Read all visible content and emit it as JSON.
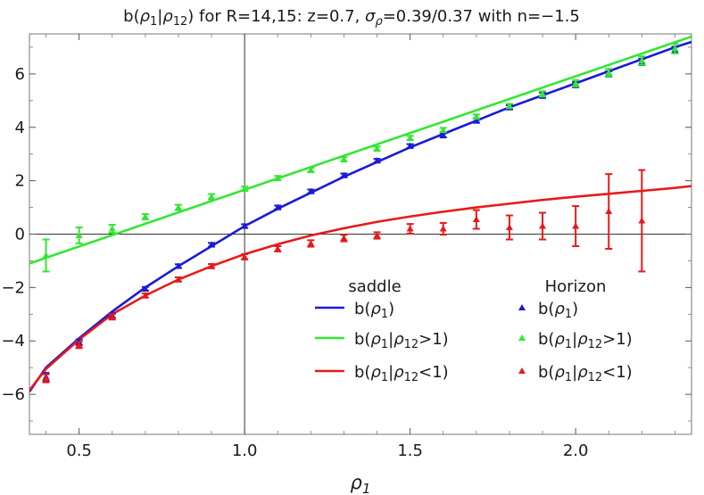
{
  "chart_data": {
    "type": "scatter",
    "title_parts": [
      {
        "t": "b("
      },
      {
        "t": "ρ",
        "it": true
      },
      {
        "t": "1",
        "sub": true
      },
      {
        "t": "|"
      },
      {
        "t": "ρ",
        "it": true
      },
      {
        "t": "12",
        "sub": true
      },
      {
        "t": ") for R=14,15: z=0.7, "
      },
      {
        "t": "σ",
        "it": true
      },
      {
        "t": "ρ",
        "sub": true,
        "it": true
      },
      {
        "t": "=0.39/0.37 with n=−1.5"
      }
    ],
    "xlabel_parts": [
      {
        "t": "ρ",
        "it": true
      },
      {
        "t": "1",
        "sub": true
      }
    ],
    "xlim": [
      0.35,
      2.35
    ],
    "ylim": [
      -7.5,
      7.5
    ],
    "xticks": [
      0.5,
      1.0,
      1.5,
      2.0
    ],
    "xtick_labels": [
      "0.5",
      "1.0",
      "1.5",
      "2.0"
    ],
    "yticks": [
      -6,
      -4,
      -2,
      0,
      2,
      4,
      6
    ],
    "ytick_labels": [
      "−6",
      "−4",
      "−2",
      "0",
      "2",
      "4",
      "6"
    ],
    "axes_origin": {
      "x": 1.0,
      "y": 0
    },
    "grid": false,
    "legend": {
      "placement": "bottom-right",
      "headers": [
        "saddle",
        "Horizon"
      ],
      "rows": [
        [
          {
            "t": "b("
          },
          {
            "t": "ρ",
            "it": true
          },
          {
            "t": "1",
            "sub": true
          },
          {
            "t": ")"
          }
        ],
        [
          {
            "t": "b("
          },
          {
            "t": "ρ",
            "it": true
          },
          {
            "t": "1",
            "sub": true
          },
          {
            "t": "|"
          },
          {
            "t": "ρ",
            "it": true
          },
          {
            "t": "12",
            "sub": true
          },
          {
            "t": ">1)"
          }
        ],
        [
          {
            "t": "b("
          },
          {
            "t": "ρ",
            "it": true
          },
          {
            "t": "1",
            "sub": true
          },
          {
            "t": "|"
          },
          {
            "t": "ρ",
            "it": true
          },
          {
            "t": "12",
            "sub": true
          },
          {
            "t": "<1)"
          }
        ]
      ]
    },
    "series": [
      {
        "color": "#1a1ad6",
        "curve": {
          "x": [
            0.35,
            0.4,
            0.5,
            0.6,
            0.7,
            0.8,
            0.9,
            1.0,
            1.1,
            1.2,
            1.3,
            1.4,
            1.5,
            1.6,
            1.7,
            1.8,
            1.9,
            2.0,
            2.1,
            2.2,
            2.3,
            2.35
          ],
          "y": [
            -5.9,
            -5.0,
            -3.9,
            -2.9,
            -2.0,
            -1.2,
            -0.45,
            0.3,
            0.95,
            1.55,
            2.15,
            2.7,
            3.25,
            3.75,
            4.25,
            4.75,
            5.2,
            5.65,
            6.1,
            6.55,
            7.0,
            7.2
          ]
        },
        "points": [
          {
            "x": 0.4,
            "y": -5.35,
            "err": 0.15
          },
          {
            "x": 0.5,
            "y": -4.05,
            "err": 0.1
          },
          {
            "x": 0.6,
            "y": -3.05,
            "err": 0.08
          },
          {
            "x": 0.7,
            "y": -2.05,
            "err": 0.07
          },
          {
            "x": 0.8,
            "y": -1.2,
            "err": 0.07
          },
          {
            "x": 0.9,
            "y": -0.4,
            "err": 0.07
          },
          {
            "x": 1.0,
            "y": 0.3,
            "err": 0.07
          },
          {
            "x": 1.1,
            "y": 1.0,
            "err": 0.07
          },
          {
            "x": 1.2,
            "y": 1.6,
            "err": 0.07
          },
          {
            "x": 1.3,
            "y": 2.2,
            "err": 0.07
          },
          {
            "x": 1.4,
            "y": 2.75,
            "err": 0.07
          },
          {
            "x": 1.5,
            "y": 3.3,
            "err": 0.07
          },
          {
            "x": 1.6,
            "y": 3.7,
            "err": 0.08
          },
          {
            "x": 1.7,
            "y": 4.25,
            "err": 0.08
          },
          {
            "x": 1.8,
            "y": 4.75,
            "err": 0.08
          },
          {
            "x": 1.9,
            "y": 5.2,
            "err": 0.1
          },
          {
            "x": 2.0,
            "y": 5.6,
            "err": 0.1
          },
          {
            "x": 2.1,
            "y": 6.0,
            "err": 0.1
          },
          {
            "x": 2.2,
            "y": 6.45,
            "err": 0.12
          },
          {
            "x": 2.3,
            "y": 6.9,
            "err": 0.12
          }
        ]
      },
      {
        "color": "#33e633",
        "curve": {
          "x": [
            0.35,
            2.35
          ],
          "y": [
            -1.1,
            7.4
          ]
        },
        "points": [
          {
            "x": 0.4,
            "y": -0.8,
            "err": 0.6
          },
          {
            "x": 0.5,
            "y": -0.05,
            "err": 0.3
          },
          {
            "x": 0.6,
            "y": 0.2,
            "err": 0.15
          },
          {
            "x": 0.7,
            "y": 0.65,
            "err": 0.1
          },
          {
            "x": 0.8,
            "y": 1.0,
            "err": 0.1
          },
          {
            "x": 0.9,
            "y": 1.4,
            "err": 0.1
          },
          {
            "x": 1.0,
            "y": 1.7,
            "err": 0.08
          },
          {
            "x": 1.1,
            "y": 2.1,
            "err": 0.08
          },
          {
            "x": 1.2,
            "y": 2.4,
            "err": 0.08
          },
          {
            "x": 1.3,
            "y": 2.8,
            "err": 0.08
          },
          {
            "x": 1.4,
            "y": 3.2,
            "err": 0.08
          },
          {
            "x": 1.5,
            "y": 3.6,
            "err": 0.08
          },
          {
            "x": 1.6,
            "y": 3.9,
            "err": 0.08
          },
          {
            "x": 1.7,
            "y": 4.4,
            "err": 0.08
          },
          {
            "x": 1.8,
            "y": 4.8,
            "err": 0.08
          },
          {
            "x": 1.9,
            "y": 5.25,
            "err": 0.1
          },
          {
            "x": 2.0,
            "y": 5.65,
            "err": 0.12
          },
          {
            "x": 2.1,
            "y": 6.05,
            "err": 0.14
          },
          {
            "x": 2.2,
            "y": 6.5,
            "err": 0.16
          },
          {
            "x": 2.3,
            "y": 6.95,
            "err": 0.18
          }
        ]
      },
      {
        "color": "#e61a1a",
        "curve": {
          "x": [
            0.35,
            0.4,
            0.5,
            0.6,
            0.7,
            0.8,
            0.9,
            1.0,
            1.1,
            1.2,
            1.3,
            1.4,
            1.5,
            1.6,
            1.7,
            1.8,
            1.9,
            2.0,
            2.1,
            2.2,
            2.3,
            2.35
          ],
          "y": [
            -5.85,
            -5.05,
            -3.95,
            -3.0,
            -2.3,
            -1.7,
            -1.2,
            -0.75,
            -0.38,
            -0.05,
            0.22,
            0.46,
            0.66,
            0.84,
            1.0,
            1.14,
            1.28,
            1.4,
            1.51,
            1.62,
            1.73,
            1.8
          ]
        },
        "points": [
          {
            "x": 0.4,
            "y": -5.4,
            "err": 0.15
          },
          {
            "x": 0.5,
            "y": -4.15,
            "err": 0.12
          },
          {
            "x": 0.6,
            "y": -3.1,
            "err": 0.1
          },
          {
            "x": 0.7,
            "y": -2.3,
            "err": 0.08
          },
          {
            "x": 0.8,
            "y": -1.7,
            "err": 0.08
          },
          {
            "x": 0.9,
            "y": -1.2,
            "err": 0.08
          },
          {
            "x": 1.0,
            "y": -0.85,
            "err": 0.1
          },
          {
            "x": 1.1,
            "y": -0.55,
            "err": 0.1
          },
          {
            "x": 1.2,
            "y": -0.35,
            "err": 0.12
          },
          {
            "x": 1.3,
            "y": -0.15,
            "err": 0.12
          },
          {
            "x": 1.4,
            "y": -0.05,
            "err": 0.12
          },
          {
            "x": 1.5,
            "y": 0.2,
            "err": 0.18
          },
          {
            "x": 1.6,
            "y": 0.2,
            "err": 0.22
          },
          {
            "x": 1.7,
            "y": 0.55,
            "err": 0.35
          },
          {
            "x": 1.8,
            "y": 0.25,
            "err": 0.45
          },
          {
            "x": 1.9,
            "y": 0.3,
            "err": 0.5
          },
          {
            "x": 2.0,
            "y": 0.3,
            "err": 0.75
          },
          {
            "x": 2.1,
            "y": 0.85,
            "err": 1.4
          },
          {
            "x": 2.2,
            "y": 0.5,
            "err": 1.9
          }
        ]
      }
    ]
  }
}
